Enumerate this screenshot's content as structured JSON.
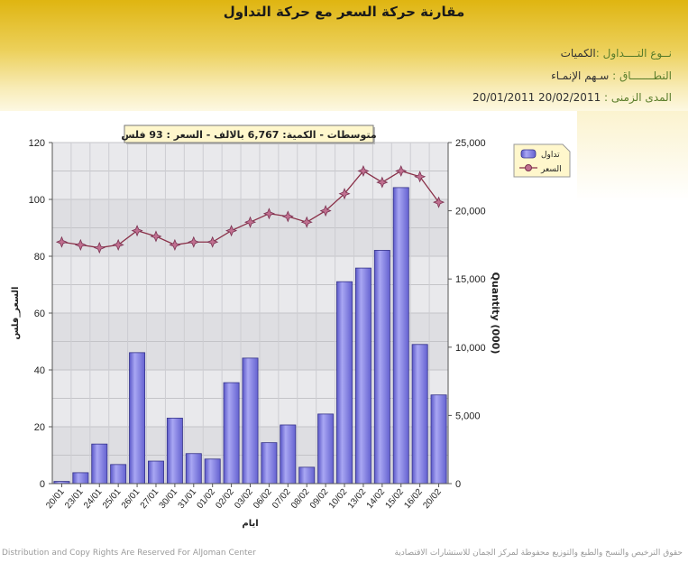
{
  "header": {
    "title": "مقارنة حركة السعر مع حركة التداول",
    "type_label": "نــوع التــــداول :",
    "type_value": "الكميات",
    "scope_label": "النطـــــــاق :",
    "scope_value": "سـهم    الإنمـاء",
    "range_label": "المدى الزمنى :",
    "range_value": "20/02/2011 20/01/2011"
  },
  "colors": {
    "bars": "#7b78e0",
    "bar_outline": "#35338a",
    "line": "#8a3048",
    "marker": "#7a3050",
    "plot_bg": "#dcdcdc"
  },
  "chart_data": {
    "type": "bar",
    "subtitle": "متوسطات - الكمية: 6,767 بالالف  - السعر : 93 فلس",
    "xlabel": "ايام",
    "ylabel_left": "السعر_فلس",
    "ylabel_right": "Quantity (000)",
    "categories": [
      "20/01",
      "23/01",
      "24/01",
      "25/01",
      "26/01",
      "27/01",
      "30/01",
      "31/01",
      "01/02",
      "02/02",
      "03/02",
      "06/02",
      "07/02",
      "08/02",
      "09/02",
      "10/02",
      "13/02",
      "14/02",
      "15/02",
      "16/02",
      "20/02"
    ],
    "series": [
      {
        "name": "تداول",
        "type": "bar",
        "axis": "right",
        "values": [
          160,
          800,
          2900,
          1400,
          9600,
          1650,
          4800,
          2200,
          1800,
          7400,
          9200,
          3000,
          4300,
          1200,
          5100,
          14800,
          15800,
          17100,
          21700,
          10200,
          6500
        ]
      },
      {
        "name": "السعر",
        "type": "line",
        "axis": "left",
        "values": [
          85,
          84,
          83,
          84,
          89,
          87,
          84,
          85,
          85,
          89,
          92,
          95,
          94,
          92,
          96,
          102,
          110,
          106,
          110,
          108,
          99
        ]
      }
    ],
    "ylim_left": [
      0,
      120
    ],
    "yticks_left": [
      "0",
      "20",
      "40",
      "60",
      "80",
      "100",
      "120"
    ],
    "ylim_right": [
      0,
      25000
    ],
    "yticks_right": [
      "0",
      "5,000",
      "10,000",
      "15,000",
      "20,000",
      "25,000"
    ],
    "grid": true,
    "legend_position": "top-right"
  },
  "footer": {
    "left": "Distribution and Copy Rights Are Reserved For AlJoman Center",
    "right": "حقوق الترخيص والنسخ والطبع والتوزيع محفوظة لمركز الجمان للاستشارات الاقتصادية"
  }
}
